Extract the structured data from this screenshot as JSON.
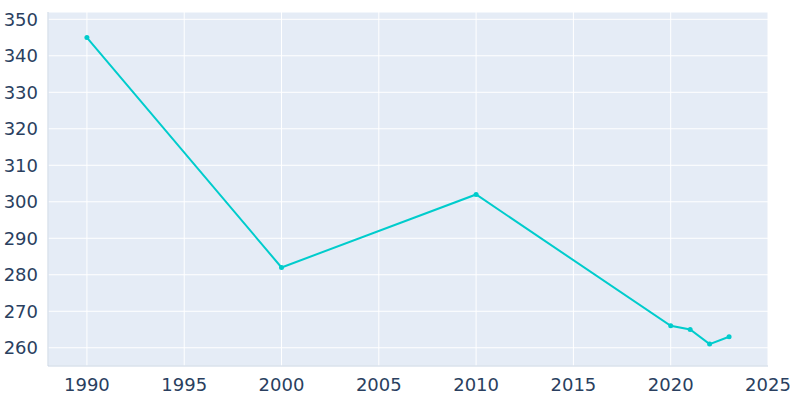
{
  "chart_data": {
    "type": "line",
    "x": [
      1990,
      2000,
      2010,
      2020,
      2021,
      2022,
      2023
    ],
    "values": [
      345,
      282,
      302,
      266,
      265,
      261,
      263
    ],
    "color": "#00cccc",
    "xlim": [
      1988,
      2025
    ],
    "ylim": [
      255,
      352
    ],
    "xticks": [
      1990,
      1995,
      2000,
      2005,
      2010,
      2015,
      2020,
      2025
    ],
    "yticks": [
      260,
      270,
      280,
      290,
      300,
      310,
      320,
      330,
      340,
      350
    ],
    "grid": true,
    "marker": "circle"
  }
}
